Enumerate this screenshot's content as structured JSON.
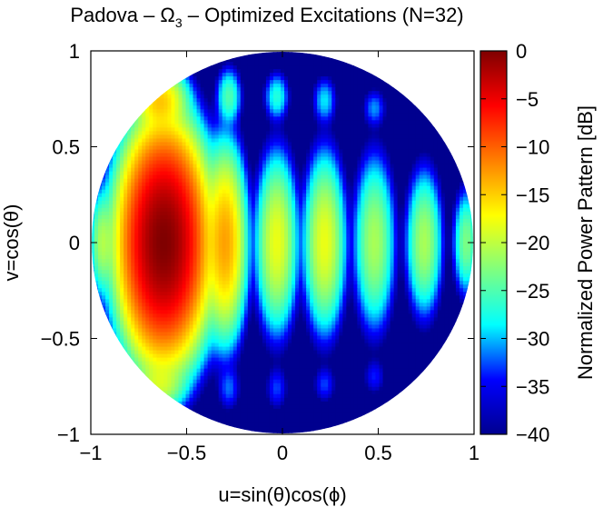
{
  "chart_data": {
    "type": "heatmap",
    "title": "Padova – Ω",
    "title_sub": "3",
    "title_rest": " – Optimized Excitations (N=32)",
    "xlabel": "u=sin(θ)cos(ϕ)",
    "ylabel": "v=cos(θ)",
    "colorbar_label": "Normalized Power Pattern [dB]",
    "xlim": [
      -1,
      1
    ],
    "ylim": [
      -1,
      1
    ],
    "clim": [
      -40,
      0
    ],
    "x_ticks": [
      -1,
      -0.5,
      0,
      0.5,
      1
    ],
    "x_tick_labels": [
      "−1",
      "−0.5",
      "0",
      "0.5",
      "1"
    ],
    "y_ticks": [
      -1,
      -0.5,
      0,
      0.5,
      1
    ],
    "y_tick_labels": [
      "−1",
      "−0.5",
      "0",
      "0.5",
      "1"
    ],
    "colorbar_ticks": [
      -40,
      -35,
      -30,
      -25,
      -20,
      -15,
      -10,
      -5,
      0
    ],
    "colorbar_tick_labels": [
      "−40",
      "−35",
      "−30",
      "−25",
      "−20",
      "−15",
      "−10",
      "−5",
      "0"
    ],
    "domain": "unit disk u²+v² ≤ 1",
    "colormap": [
      "#00008f",
      "#0000ff",
      "#00ffff",
      "#7fff7f",
      "#ffff00",
      "#ff7f00",
      "#ff0000",
      "#7f0000"
    ],
    "main_beam": {
      "u": -0.62,
      "v": 0.0,
      "level_db": 0
    },
    "lobes": [
      {
        "u": -0.62,
        "v": 0.0,
        "level_db": 0,
        "su": 0.085,
        "sv": 0.22
      },
      {
        "u": -0.3,
        "v": 0.0,
        "level_db": -13,
        "su": 0.045,
        "sv": 0.2
      },
      {
        "u": -0.03,
        "v": 0.0,
        "level_db": -18,
        "su": 0.045,
        "sv": 0.19
      },
      {
        "u": 0.22,
        "v": 0.0,
        "level_db": -18,
        "su": 0.045,
        "sv": 0.19
      },
      {
        "u": 0.48,
        "v": 0.0,
        "level_db": -21,
        "su": 0.045,
        "sv": 0.19
      },
      {
        "u": 0.74,
        "v": 0.0,
        "level_db": -21,
        "su": 0.04,
        "sv": 0.16
      },
      {
        "u": 0.96,
        "v": 0.0,
        "level_db": -23,
        "su": 0.03,
        "sv": 0.12
      },
      {
        "u": -0.94,
        "v": 0.0,
        "level_db": -21,
        "su": 0.03,
        "sv": 0.12
      },
      {
        "u": -0.64,
        "v": 0.74,
        "level_db": -15,
        "su": 0.06,
        "sv": 0.07
      },
      {
        "u": -0.64,
        "v": -0.74,
        "level_db": -20,
        "su": 0.06,
        "sv": 0.06
      },
      {
        "u": -0.28,
        "v": 0.76,
        "level_db": -25,
        "su": 0.03,
        "sv": 0.07
      },
      {
        "u": -0.03,
        "v": 0.76,
        "level_db": -27,
        "su": 0.03,
        "sv": 0.06
      },
      {
        "u": 0.22,
        "v": 0.74,
        "level_db": -29,
        "su": 0.03,
        "sv": 0.06
      },
      {
        "u": 0.48,
        "v": 0.7,
        "level_db": -31,
        "su": 0.03,
        "sv": 0.05
      },
      {
        "u": -0.28,
        "v": -0.76,
        "level_db": -32,
        "su": 0.03,
        "sv": 0.06
      },
      {
        "u": -0.03,
        "v": -0.76,
        "level_db": -33,
        "su": 0.03,
        "sv": 0.06
      },
      {
        "u": 0.22,
        "v": -0.74,
        "level_db": -33,
        "su": 0.03,
        "sv": 0.05
      },
      {
        "u": 0.48,
        "v": -0.7,
        "level_db": -34,
        "su": 0.03,
        "sv": 0.05
      }
    ]
  }
}
